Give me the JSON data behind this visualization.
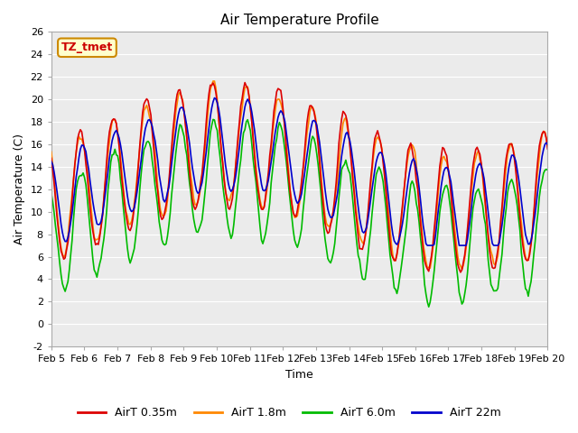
{
  "title": "Air Temperature Profile",
  "xlabel": "Time",
  "ylabel": "Air Temperature (C)",
  "ylim": [
    -2,
    26
  ],
  "yticks": [
    -2,
    0,
    2,
    4,
    6,
    8,
    10,
    12,
    14,
    16,
    18,
    20,
    22,
    24,
    26
  ],
  "xtick_labels": [
    "Feb 5",
    "Feb 6",
    "Feb 7",
    "Feb 8",
    "Feb 9",
    "Feb 10",
    "Feb 11",
    "Feb 12",
    "Feb 13",
    "Feb 14",
    "Feb 15",
    "Feb 16",
    "Feb 17",
    "Feb 18",
    "Feb 19",
    "Feb 20"
  ],
  "annotation_text": "TZ_tmet",
  "annotation_color": "#cc0000",
  "annotation_bg": "#ffffcc",
  "annotation_border": "#cc8800",
  "series_colors": [
    "#dd0000",
    "#ff8800",
    "#00bb00",
    "#0000cc"
  ],
  "series_labels": [
    "AirT 0.35m",
    "AirT 1.8m",
    "AirT 6.0m",
    "AirT 22m"
  ],
  "fig_bg_color": "#ffffff",
  "plot_bg_color": "#ebebeb",
  "grid_color": "#ffffff",
  "title_fontsize": 11,
  "axis_label_fontsize": 9,
  "tick_fontsize": 8
}
